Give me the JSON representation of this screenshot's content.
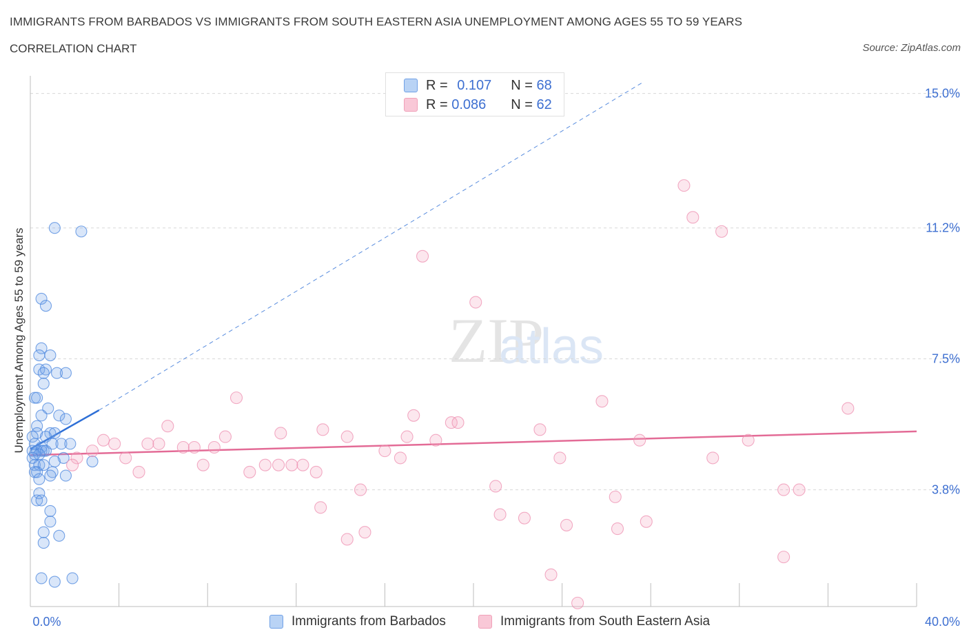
{
  "header": {
    "title": "IMMIGRANTS FROM BARBADOS VS IMMIGRANTS FROM SOUTH EASTERN ASIA UNEMPLOYMENT AMONG AGES 55 TO 59 YEARS",
    "subtitle": "CORRELATION CHART",
    "source": "Source: ZipAtlas.com"
  },
  "legend": {
    "rows": [
      {
        "r_label": "R =",
        "r_value": "0.107",
        "n_label": "N =",
        "n_value": "68",
        "color": "#6fa0e6"
      },
      {
        "r_label": "R =",
        "r_value": "0.086",
        "n_label": "N =",
        "n_value": "62",
        "color": "#f0a0b8"
      }
    ]
  },
  "watermark": {
    "zip": "ZIP",
    "atlas": "atlas"
  },
  "colors": {
    "blue": "#4a86de",
    "blue_line": "#2e6fd6",
    "pink": "#ee8fb0",
    "pink_line": "#e36b96",
    "axis_label": "#3d6fd1",
    "grid": "#d8d8d8"
  },
  "chart_data": {
    "type": "scatter",
    "ylabel": "Unemployment Among Ages 55 to 59 years",
    "x_ticks": [
      "0.0%",
      "40.0%"
    ],
    "y_ticks": [
      "15.0%",
      "11.2%",
      "7.5%",
      "3.8%"
    ],
    "y_tick_values": [
      15.0,
      11.2,
      7.5,
      3.8
    ],
    "xlim": [
      0,
      40
    ],
    "ylim": [
      0.5,
      15.5
    ],
    "series": [
      {
        "name": "Immigrants from Barbados",
        "color": "#4a86de",
        "trend": {
          "x": [
            0.0,
            3.1
          ],
          "y": [
            4.95,
            6.05
          ],
          "extended_to": [
            27.6,
            15.3
          ]
        },
        "points": [
          [
            1.1,
            11.2
          ],
          [
            2.3,
            11.1
          ],
          [
            0.5,
            9.2
          ],
          [
            0.7,
            9.0
          ],
          [
            0.5,
            7.8
          ],
          [
            0.4,
            7.6
          ],
          [
            0.9,
            7.6
          ],
          [
            0.4,
            7.2
          ],
          [
            0.7,
            7.2
          ],
          [
            0.6,
            7.1
          ],
          [
            1.2,
            7.1
          ],
          [
            1.6,
            7.1
          ],
          [
            0.6,
            6.8
          ],
          [
            0.2,
            6.4
          ],
          [
            0.3,
            6.4
          ],
          [
            0.8,
            6.1
          ],
          [
            0.5,
            5.9
          ],
          [
            1.3,
            5.9
          ],
          [
            1.6,
            5.8
          ],
          [
            0.3,
            5.6
          ],
          [
            0.3,
            5.4
          ],
          [
            0.9,
            5.4
          ],
          [
            1.1,
            5.4
          ],
          [
            0.7,
            5.3
          ],
          [
            0.1,
            5.3
          ],
          [
            0.2,
            5.1
          ],
          [
            1.0,
            5.1
          ],
          [
            1.4,
            5.1
          ],
          [
            1.8,
            5.1
          ],
          [
            0.5,
            5.0
          ],
          [
            0.1,
            4.9
          ],
          [
            0.3,
            4.9
          ],
          [
            0.5,
            4.9
          ],
          [
            0.6,
            4.9
          ],
          [
            0.7,
            4.9
          ],
          [
            0.2,
            4.8
          ],
          [
            0.4,
            4.8
          ],
          [
            0.1,
            4.7
          ],
          [
            1.5,
            4.7
          ],
          [
            0.2,
            4.5
          ],
          [
            0.4,
            4.5
          ],
          [
            0.6,
            4.5
          ],
          [
            1.1,
            4.6
          ],
          [
            2.8,
            4.6
          ],
          [
            0.2,
            4.3
          ],
          [
            0.3,
            4.3
          ],
          [
            1.0,
            4.3
          ],
          [
            1.6,
            4.2
          ],
          [
            0.4,
            4.1
          ],
          [
            0.9,
            4.2
          ],
          [
            0.4,
            3.7
          ],
          [
            0.3,
            3.5
          ],
          [
            0.5,
            3.5
          ],
          [
            0.9,
            3.2
          ],
          [
            0.9,
            2.9
          ],
          [
            0.6,
            2.6
          ],
          [
            1.3,
            2.5
          ],
          [
            0.6,
            2.3
          ],
          [
            0.5,
            1.3
          ],
          [
            1.1,
            1.2
          ],
          [
            1.9,
            1.3
          ]
        ]
      },
      {
        "name": "Immigrants from South Eastern Asia",
        "color": "#ee8fb0",
        "trend": {
          "x": [
            0.0,
            40.0
          ],
          "y": [
            4.78,
            5.45
          ]
        },
        "points": [
          [
            29.5,
            12.4
          ],
          [
            29.9,
            11.5
          ],
          [
            31.2,
            11.1
          ],
          [
            17.7,
            10.4
          ],
          [
            20.1,
            9.1
          ],
          [
            9.3,
            6.4
          ],
          [
            25.8,
            6.3
          ],
          [
            36.9,
            6.1
          ],
          [
            17.3,
            5.9
          ],
          [
            19.0,
            5.7
          ],
          [
            19.3,
            5.7
          ],
          [
            6.2,
            5.6
          ],
          [
            13.2,
            5.5
          ],
          [
            23.0,
            5.5
          ],
          [
            11.3,
            5.4
          ],
          [
            14.3,
            5.3
          ],
          [
            17.0,
            5.3
          ],
          [
            8.8,
            5.3
          ],
          [
            27.5,
            5.2
          ],
          [
            32.4,
            5.2
          ],
          [
            18.3,
            5.2
          ],
          [
            3.3,
            5.2
          ],
          [
            3.8,
            5.1
          ],
          [
            5.3,
            5.1
          ],
          [
            5.8,
            5.1
          ],
          [
            6.9,
            5.0
          ],
          [
            7.4,
            5.0
          ],
          [
            8.3,
            5.0
          ],
          [
            2.8,
            4.9
          ],
          [
            16.0,
            4.9
          ],
          [
            2.1,
            4.7
          ],
          [
            4.3,
            4.7
          ],
          [
            16.7,
            4.7
          ],
          [
            23.9,
            4.7
          ],
          [
            30.8,
            4.7
          ],
          [
            7.8,
            4.5
          ],
          [
            10.6,
            4.5
          ],
          [
            11.2,
            4.5
          ],
          [
            11.8,
            4.5
          ],
          [
            12.3,
            4.5
          ],
          [
            1.9,
            4.5
          ],
          [
            9.9,
            4.3
          ],
          [
            12.9,
            4.3
          ],
          [
            4.9,
            4.3
          ],
          [
            21.0,
            3.9
          ],
          [
            14.9,
            3.8
          ],
          [
            34.0,
            3.8
          ],
          [
            34.7,
            3.8
          ],
          [
            26.4,
            3.6
          ],
          [
            13.1,
            3.3
          ],
          [
            21.2,
            3.1
          ],
          [
            22.3,
            3.0
          ],
          [
            27.8,
            2.9
          ],
          [
            24.2,
            2.8
          ],
          [
            26.5,
            2.7
          ],
          [
            15.1,
            2.6
          ],
          [
            14.3,
            2.4
          ],
          [
            34.0,
            1.9
          ],
          [
            23.5,
            1.4
          ],
          [
            24.7,
            0.6
          ]
        ]
      }
    ]
  },
  "bottom_legend": {
    "items": [
      {
        "label": "Immigrants from Barbados"
      },
      {
        "label": "Immigrants from South Eastern Asia"
      }
    ]
  }
}
